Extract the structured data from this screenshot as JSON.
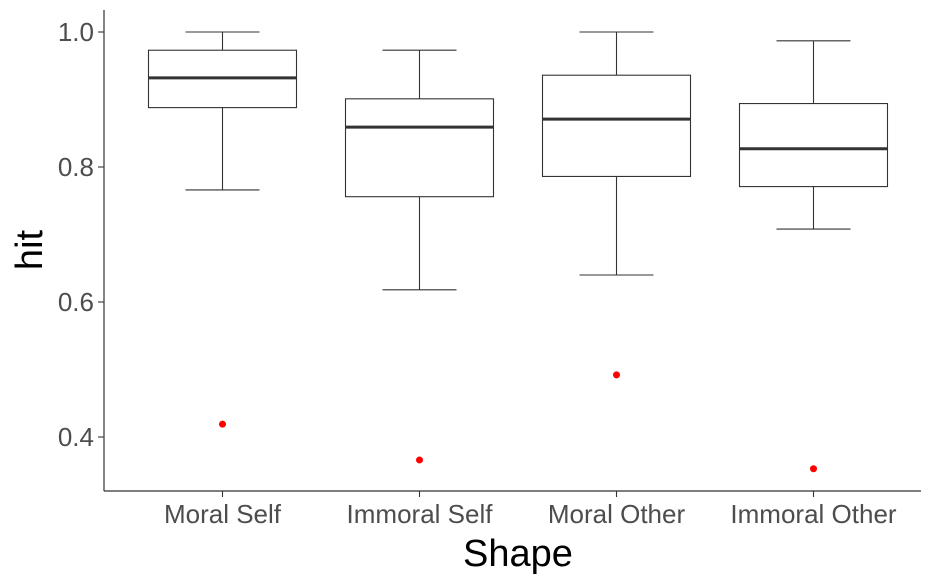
{
  "chart_data": {
    "type": "boxplot",
    "title": "",
    "xlabel": "Shape",
    "ylabel": "hit",
    "categories": [
      "Moral Self",
      "Immoral Self",
      "Moral Other",
      "Immoral Other"
    ],
    "ylim": [
      0.32,
      1.03
    ],
    "yticks": [
      0.4,
      0.6,
      0.8,
      1.0
    ],
    "ytick_labels": [
      "0.4",
      "0.6",
      "0.8",
      "1.0"
    ],
    "boxes": [
      {
        "category": "Moral Self",
        "whisker_low": 0.766,
        "q1": 0.888,
        "median": 0.932,
        "q3": 0.973,
        "whisker_high": 1.0,
        "outliers": [
          0.419
        ]
      },
      {
        "category": "Immoral Self",
        "whisker_low": 0.618,
        "q1": 0.756,
        "median": 0.859,
        "q3": 0.901,
        "whisker_high": 0.973,
        "outliers": [
          0.366
        ]
      },
      {
        "category": "Moral Other",
        "whisker_low": 0.64,
        "q1": 0.786,
        "median": 0.871,
        "q3": 0.936,
        "whisker_high": 1.0,
        "outliers": [
          0.492
        ]
      },
      {
        "category": "Immoral Other",
        "whisker_low": 0.708,
        "q1": 0.771,
        "median": 0.827,
        "q3": 0.894,
        "whisker_high": 0.987,
        "outliers": [
          0.353
        ]
      }
    ],
    "grid": false,
    "legend": "none",
    "colors": {
      "box_stroke": "#333333",
      "outlier": "#ff0000",
      "axis": "#333333",
      "tick_text": "#4d4d4d"
    }
  }
}
